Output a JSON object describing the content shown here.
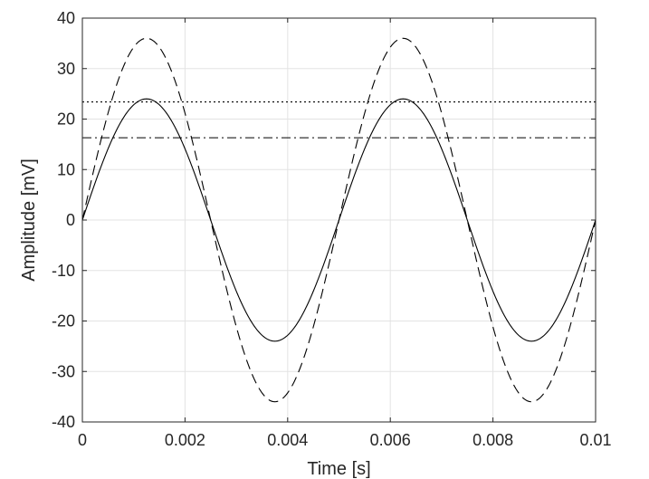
{
  "chart_data": {
    "type": "line",
    "title": "",
    "xlabel": "Time [s]",
    "ylabel": "Amplitude [mV]",
    "xlim": [
      0,
      0.01
    ],
    "ylim": [
      -40,
      40
    ],
    "x_ticks": [
      0,
      0.002,
      0.004,
      0.006,
      0.008,
      0.01
    ],
    "x_tick_labels": [
      "0",
      "0.002",
      "0.004",
      "0.006",
      "0.008",
      "0.01"
    ],
    "y_ticks": [
      -40,
      -30,
      -20,
      -10,
      0,
      10,
      20,
      30,
      40
    ],
    "y_tick_labels": [
      "-40",
      "-30",
      "-20",
      "-10",
      "0",
      "10",
      "20",
      "30",
      "40"
    ],
    "grid": true,
    "legend": "none",
    "series": [
      {
        "style": "solid",
        "color": "#000000",
        "x": [
          0,
          0.00125,
          0.0025,
          0.00375,
          0.005,
          0.00625,
          0.0075,
          0.00875,
          0.01
        ],
        "y": [
          0,
          24,
          0,
          -24,
          0,
          24,
          0,
          -24,
          0
        ]
      },
      {
        "style": "dashed",
        "color": "#000000",
        "x": [
          0,
          0.00125,
          0.0025,
          0.00375,
          0.005,
          0.00625,
          0.0075,
          0.00875,
          0.01
        ],
        "y": [
          0,
          36,
          0,
          -36,
          0,
          36,
          0,
          -36,
          0
        ]
      },
      {
        "style": "dotted",
        "color": "#000000",
        "x": [
          0,
          0.01
        ],
        "y": [
          23.4,
          23.4
        ]
      },
      {
        "style": "dashdot",
        "color": "#000000",
        "x": [
          0,
          0.01
        ],
        "y": [
          16.3,
          16.3
        ]
      }
    ]
  }
}
